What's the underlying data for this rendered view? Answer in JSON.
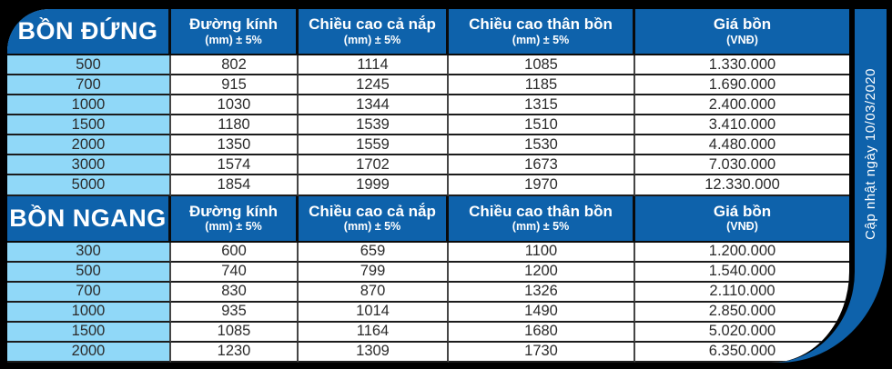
{
  "colors": {
    "primary_blue": "#0e62ab",
    "light_blue": "#90d8f8"
  },
  "side_note": "Cập nhật ngày 10/03/2020",
  "sections": [
    {
      "title": "BỒN ĐỨNG",
      "columns": [
        {
          "label": "Đường kính",
          "sub": "(mm) ± 5%"
        },
        {
          "label": "Chiều cao cả nắp",
          "sub": "(mm) ± 5%"
        },
        {
          "label": "Chiều cao thân bồn",
          "sub": "(mm) ± 5%"
        },
        {
          "label": "Giá bồn",
          "sub": "(VNĐ)"
        }
      ],
      "rows": [
        [
          "500",
          "802",
          "1114",
          "1085",
          "1.330.000"
        ],
        [
          "700",
          "915",
          "1245",
          "1185",
          "1.690.000"
        ],
        [
          "1000",
          "1030",
          "1344",
          "1315",
          "2.400.000"
        ],
        [
          "1500",
          "1180",
          "1539",
          "1510",
          "3.410.000"
        ],
        [
          "2000",
          "1350",
          "1559",
          "1530",
          "4.480.000"
        ],
        [
          "3000",
          "1574",
          "1702",
          "1673",
          "7.030.000"
        ],
        [
          "5000",
          "1854",
          "1999",
          "1970",
          "12.330.000"
        ]
      ]
    },
    {
      "title": "BỒN NGANG",
      "columns": [
        {
          "label": "Đường kính",
          "sub": "(mm) ± 5%"
        },
        {
          "label": "Chiều cao cả nắp",
          "sub": "(mm) ± 5%"
        },
        {
          "label": "Chiều cao thân bồn",
          "sub": "(mm) ± 5%"
        },
        {
          "label": "Giá bồn",
          "sub": "(VNĐ)"
        }
      ],
      "rows": [
        [
          "300",
          "600",
          "659",
          "1100",
          "1.200.000"
        ],
        [
          "500",
          "740",
          "799",
          "1200",
          "1.540.000"
        ],
        [
          "700",
          "830",
          "870",
          "1326",
          "2.110.000"
        ],
        [
          "1000",
          "935",
          "1014",
          "1490",
          "2.850.000"
        ],
        [
          "1500",
          "1085",
          "1164",
          "1680",
          "5.020.000"
        ],
        [
          "2000",
          "1230",
          "1309",
          "1730",
          "6.350.000"
        ]
      ]
    }
  ]
}
